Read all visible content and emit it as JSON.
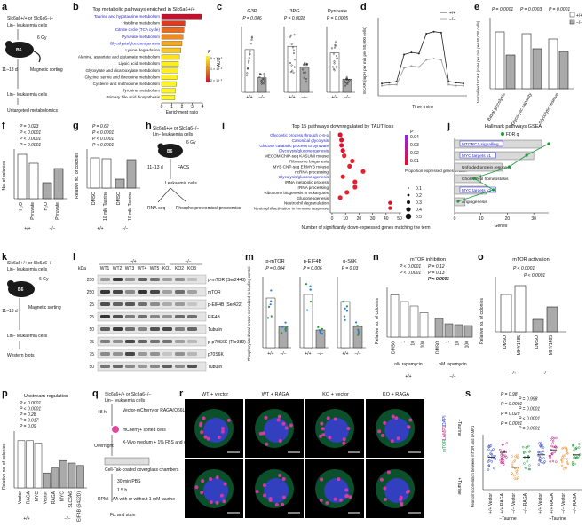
{
  "panels": {
    "a": {
      "label": "a",
      "genotype": "Slc6a6+/+ or Slc6a6−/−",
      "cells": "Lin− leukaemia cells",
      "irradiation": "6 Gy",
      "mouse": "B6",
      "days": "11–13 d",
      "sorting": "Magnetic sorting",
      "lsk": "Lin− leukaemia cells",
      "output": "Untargeted metabolomics"
    },
    "b": {
      "label": "b",
      "title": "Top metabolic pathways enriched in Slc6a6+/+",
      "xlabel": "Enrichment ratio",
      "xticks": [
        "0",
        "1",
        "2",
        "3",
        "4"
      ],
      "legend_title": "P",
      "legend_ticks": [
        "5 × 10⁻²",
        "1 × 10⁻²",
        "2 × 10⁻³"
      ]
    },
    "c": {
      "label": "c",
      "ylabel": "AUC",
      "groups": [
        "+/+",
        "−/−"
      ],
      "subplots": [
        {
          "title": "G3P",
          "p": "P = 0.046",
          "yticks": [
            "0",
            "1 × 10⁶",
            "2 × 10⁶",
            "3 × 10⁶",
            "4 × 10⁶"
          ]
        },
        {
          "title": "3PG",
          "p": "P = 0.0028",
          "yticks": [
            "0",
            "5 × 10⁵",
            "1 × 10⁶",
            "1.5 × 10⁶"
          ]
        },
        {
          "title": "Pyruvate",
          "p": "P = 0.0005",
          "yticks": [
            "0",
            "5 × 10⁴",
            "1 × 10⁵",
            "1.5 × 10⁵"
          ]
        }
      ]
    },
    "d": {
      "label": "d",
      "ylabel": "ECAR (mpH per min per 50,000 cells)",
      "xlabel": "Time (min)",
      "legend": [
        "+/+",
        "−/−"
      ]
    },
    "e": {
      "label": "e",
      "ylabel": "Normalized ECAR (mpH per min per 50,000 cells)",
      "categories": [
        "Basal glycolysis",
        "Glycolytic capacity",
        "Glycolytic reserve"
      ],
      "p_values": [
        "P = 0.0001",
        "P = 0.0003",
        "P = 0.0001"
      ],
      "legend": [
        "+/+",
        "−/−"
      ]
    },
    "f": {
      "label": "f",
      "ylabel": "No. of colonies",
      "p_values": [
        "P = 0.023",
        "P < 0.0001",
        "P < 0.0001",
        "P = 0.0001"
      ],
      "xcats": [
        "H₂O",
        "Pyruvate",
        "H₂O",
        "Pyruvate"
      ],
      "groups": [
        "+/+",
        "−/−"
      ]
    },
    "g": {
      "label": "g",
      "ylabel": "Relative no. of colonies",
      "p_values": [
        "P = 0.62",
        "P < 0.0001",
        "P < 0.0001",
        "P < 0.0001"
      ],
      "xcats": [
        "DMSO",
        "10 mM Taurine",
        "DMSO",
        "10 mM Taurine"
      ],
      "groups": [
        "+/+",
        "−/−"
      ]
    },
    "h": {
      "label": "h",
      "genotype": "Slc6a6+/+ or Slc6a6−/−",
      "cells": "Lin− leukaemia cells",
      "irradiation": "6 Gy",
      "mouse": "B6",
      "days": "11–13 d",
      "sort": "FACS",
      "mid": "Leukaemia cells",
      "out1": "RNA-seq",
      "out2": "Phospho-proteomics/ proteomics"
    },
    "i": {
      "label": "i",
      "title": "Top 15 pathways downregulated by TAUT loss",
      "xlabel": "Number of significantly down-expressed genes matching the term",
      "terms": [
        {
          "text": "Glycolytic process through g-6-p",
          "blue": true
        },
        {
          "text": "Canonical glycolysis",
          "blue": true
        },
        {
          "text": "Glucose catabolic process to pyruvate",
          "blue": true
        },
        {
          "text": "Glycolysis/gluconeogenesis",
          "blue": true
        },
        {
          "text": "MECOM ChIP-seq KASUMI mouse",
          "blue": false
        },
        {
          "text": "Ribosome biogenesis",
          "blue": false
        },
        {
          "text": "MYB CNP-seq ERMYB mouse",
          "blue": false
        },
        {
          "text": "ncRNA processing",
          "blue": false
        },
        {
          "text": "Glycolysis/gluconeogenesis",
          "blue": true
        },
        {
          "text": "rRNA metabolic process",
          "blue": false
        },
        {
          "text": "rRNA processing",
          "blue": false
        },
        {
          "text": "Ribosome biogenesis in eukaryotes",
          "blue": false
        },
        {
          "text": "Gluconeogenesis",
          "blue": false
        },
        {
          "text": "Neutrophil degranulation",
          "blue": false
        },
        {
          "text": "Neutrophil activation in immune response",
          "blue": false
        }
      ],
      "xticks": [
        "0",
        "10",
        "20",
        "30",
        "40",
        "50"
      ],
      "colorbar_title": "P",
      "colorbar_ticks": [
        "0.04",
        "0.03",
        "0.02",
        "0.01"
      ],
      "size_title": "Proportion expressed genes in term",
      "size_ticks": [
        "0.1",
        "0.2",
        "0.3",
        "0.4",
        "0.5"
      ]
    },
    "j": {
      "label": "j",
      "title": "Hallmark pathways GSEA",
      "legend": "FDR q",
      "xlabel": "Genes",
      "terms": [
        {
          "text": "MTORC1 signalling",
          "boxed": true
        },
        {
          "text": "MYC targets v1",
          "boxed": true
        },
        {
          "text": "Unfolded protein response",
          "boxed": false
        },
        {
          "text": "Cholesterol homeostasis",
          "boxed": false
        },
        {
          "text": "MYC targets v2",
          "boxed": true
        },
        {
          "text": "Angiogenesis",
          "boxed": false
        }
      ],
      "xticks": [
        "0",
        "10",
        "20",
        "30"
      ]
    },
    "k": {
      "label": "k",
      "genotype": "Slc6a6+/+ or Slc6a6−/−",
      "cells": "Lin− leukaemia cells",
      "irradiation": "6 Gy",
      "mouse": "B6",
      "days": "11–13 d",
      "sort": "Magnetic sorting",
      "lsk": "Lin− leukaemia cells",
      "out": "Western blots"
    },
    "l": {
      "label": "l",
      "kda": "kDa",
      "groups": [
        "+/+",
        "−/−"
      ],
      "lanes": [
        "WT1",
        "WT2",
        "WT3",
        "WT4",
        "WT5",
        "KO1",
        "KO2",
        "KO3"
      ],
      "mw": [
        "250",
        "250",
        "25",
        "25",
        "50",
        "75",
        "75",
        "50"
      ],
      "bands": [
        "p-mTOR (Ser2448)",
        "mTOR",
        "p-EIF4B (Ser422)",
        "EIF4B",
        "Tubulin",
        "p-p70S6K (Thr389)",
        "p70S6K",
        "Tubulin"
      ]
    },
    "m": {
      "label": "m",
      "ylabel": "Phosphorylated/total protein normalized to loading control",
      "subplots": [
        {
          "title": "p-mTOR",
          "p": "P = 0.004"
        },
        {
          "title": "p-EIF4B",
          "p": "P = 0.006"
        },
        {
          "title": "p-S6K",
          "p": "P = 0.03"
        }
      ],
      "groups": [
        "+/+",
        "−/−"
      ]
    },
    "n": {
      "label": "n",
      "title": "mTOR inhibition",
      "ylabel": "Relative no. of colonies",
      "p_values": [
        "P < 0.0001",
        "P < 0.0001",
        "P = 0.997",
        "P = 0.12",
        "P = 0.13",
        "P < 0.0001"
      ],
      "xcats": [
        "DMSO",
        "1",
        "10",
        "100",
        "DMSO",
        "1",
        "10",
        "100"
      ],
      "xgroup": "nM rapamycin",
      "groups": [
        "+/+",
        "−/−"
      ]
    },
    "o": {
      "label": "o",
      "title": "mTOR activation",
      "ylabel": "Relative no. of colonies",
      "p_values": [
        "P < 0.0001",
        "P < 0.0001"
      ],
      "xcats": [
        "DMSO",
        "MHY1485",
        "DMSO",
        "MHY1485"
      ],
      "groups": [
        "+/+",
        "−/−"
      ]
    },
    "p": {
      "label": "p",
      "title": "Upstream regulation",
      "ylabel": "Relative no. of colonies",
      "p_values": [
        "P < 0.0001",
        "P < 0.0001",
        "P = 0.28",
        "P = 0.017",
        "P = 0.09"
      ],
      "xcats": [
        "Vector",
        "RAGA",
        "MYC",
        "Vector",
        "RAGA",
        "MYC",
        "SLC6A6",
        "EIF4B (S422D)"
      ],
      "groups": [
        "+/+",
        "−/−"
      ]
    },
    "q": {
      "label": "q",
      "genotype": "Slc6a6+/+ or Slc6a6−/−",
      "cells": "Lin− leukaemia cells",
      "time1": "48 h",
      "transduction": "Vector-mCherry or RAGA(Q66L)-mCherry",
      "sorted": "mCherry+ sorted cells",
      "overnight": "Overnight",
      "medium": "X-Vivo medium + 1% FBS and cytokines",
      "chamber": "Cell-Tak-coated coverglass chambers",
      "step1": "30 min PBS",
      "step2": "1.5 h",
      "step3": "RPMI –AA with or without 1 mM taurine",
      "final": "Fix and stain"
    },
    "r": {
      "label": "r",
      "columns": [
        "WT + vector",
        "WT + RAGA",
        "KO + vector",
        "KO + RAGA"
      ],
      "rows": [
        "−Taurine",
        "+Taurine"
      ],
      "stain_mtor": "mTOR",
      "stain_lamp": "LAMP1",
      "stain_dapi": "DAPI"
    },
    "s": {
      "label": "s",
      "ylabel": "Pearson's correlation between mTOR and LAMP1",
      "p_values": [
        "P = 0.98",
        "P = 0.998",
        "P = 0.0001",
        "P = 0.0001",
        "P = 0.029",
        "P < 0.0001",
        "P = 0.0001",
        "P = 0.0001"
      ],
      "xcats": [
        "+/+ Vector",
        "+/+ RAGA",
        "−/− Vector",
        "−/− RAGA",
        "+/+ Vector",
        "+/+ RAGA",
        "−/− Vector",
        "−/− RAGA"
      ],
      "groups": [
        "−Taurine",
        "+Taurine"
      ]
    }
  },
  "chart_data": [
    {
      "type": "bar",
      "panel": "b",
      "title": "Top metabolic pathways enriched in Slc6a6+/+",
      "xlabel": "Enrichment ratio",
      "orientation": "horizontal",
      "categories": [
        "Taurine and hypotaurine metabolism",
        "Histidine metabolism",
        "Citrate cycle (TCA cycle)",
        "Pyruvate metabolism",
        "Glycolysis/gluconeogenesis",
        "Lysine degradation",
        "Alanine, aspartate and glutamate metabolism",
        "Lipoic acid metabolism",
        "Glyoxylate and dicarboxylate metabolism",
        "Glycine, serine and threonine metabolism",
        "Cysteine and methionine metabolism",
        "Tyrosine metabolism",
        "Primary bile acid biosynthesis"
      ],
      "highlighted": [
        true,
        false,
        true,
        true,
        true,
        false,
        false,
        false,
        false,
        false,
        false,
        false,
        false
      ],
      "values": [
        3.9,
        2.3,
        2.2,
        2.1,
        2.0,
        1.9,
        1.75,
        1.65,
        1.6,
        1.5,
        1.45,
        1.35,
        1.3
      ],
      "colors": [
        "#c8102e",
        "#e03a22",
        "#ea6b1f",
        "#f08a20",
        "#f5a81e",
        "#f8c61c",
        "#fbe21a",
        "#fcee1e",
        "#fdf01e",
        "#fdf21e",
        "#fef41e",
        "#fef61e",
        "#fef81e"
      ],
      "xlim": [
        0,
        4
      ]
    },
    {
      "type": "line",
      "panel": "d",
      "xlabel": "Time (min)",
      "ylabel": "ECAR (mpH per min per 50,000 cells)",
      "x": [
        0,
        6,
        12,
        18,
        24,
        30,
        36,
        42,
        48,
        54,
        60,
        66
      ],
      "series": [
        {
          "name": "+/+",
          "values": [
            10,
            11,
            12,
            38,
            40,
            39,
            58,
            60,
            59,
            12,
            11,
            10
          ]
        },
        {
          "name": "−/−",
          "values": [
            8,
            9,
            9,
            25,
            27,
            26,
            33,
            34,
            33,
            9,
            8,
            8
          ]
        }
      ],
      "ylim": [
        0,
        70
      ]
    },
    {
      "type": "scatter",
      "panel": "i",
      "title": "Top 15 pathways downregulated by TAUT loss",
      "xlabel": "Number of significantly down-expressed genes matching the term",
      "categories": [
        "Glycolytic process through g-6-p",
        "Canonical glycolysis",
        "Glucose catabolic process to pyruvate",
        "Glycolysis/gluconeogenesis",
        "MECOM ChIP-seq KASUMI mouse",
        "Ribosome biogenesis",
        "MYB CNP-seq ERMYB mouse",
        "ncRNA processing",
        "Glycolysis/gluconeogenesis",
        "rRNA metabolic process",
        "rRNA processing",
        "Ribosome biogenesis in eukaryotes",
        "Gluconeogenesis",
        "Neutrophil degranulation",
        "Neutrophil activation in immune response"
      ],
      "x": [
        6,
        7,
        7,
        8,
        9,
        15,
        13,
        23,
        8,
        17,
        17,
        11,
        6,
        43,
        43
      ],
      "xlim": [
        0,
        50
      ]
    },
    {
      "type": "bar",
      "panel": "j",
      "title": "Hallmark pathways GSEA",
      "xlabel": "Genes",
      "orientation": "horizontal",
      "categories": [
        "MTORC1 signalling",
        "MYC targets v1",
        "Unfolded protein response",
        "Cholesterol homeostasis",
        "MYC targets v2",
        "Angiogenesis"
      ],
      "values": [
        33,
        30,
        18,
        10,
        12,
        4
      ],
      "xlim": [
        0,
        35
      ]
    }
  ]
}
